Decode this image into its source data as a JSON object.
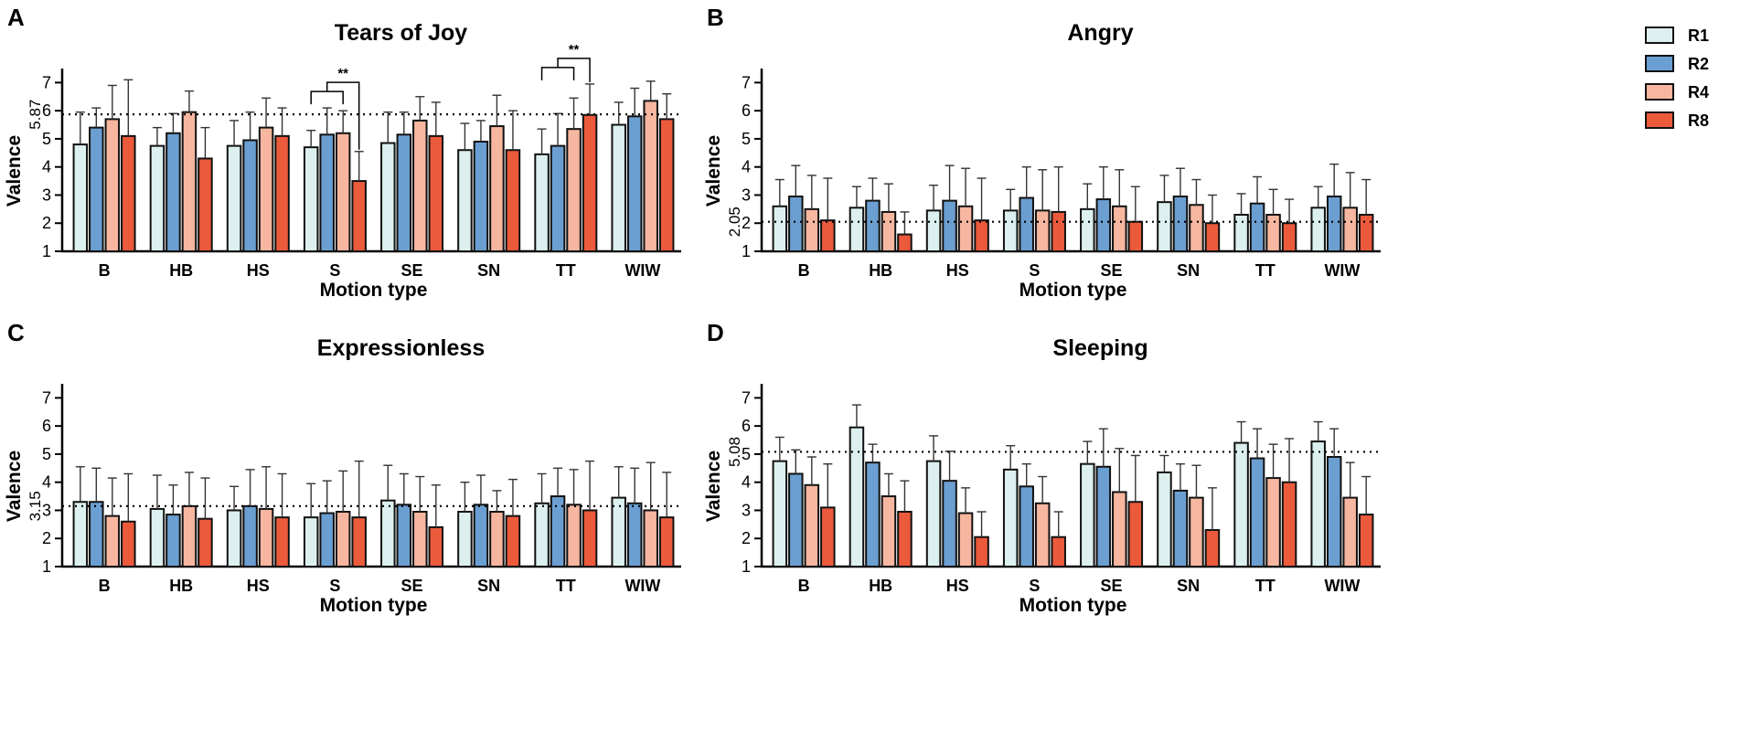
{
  "legend": {
    "items": [
      {
        "label": "R1",
        "color": "#dcf0ef"
      },
      {
        "label": "R2",
        "color": "#6b9fd1"
      },
      {
        "label": "R4",
        "color": "#f7b6a0"
      },
      {
        "label": "R8",
        "color": "#ec5a3c"
      }
    ]
  },
  "chart_data": [
    {
      "panel": "A",
      "type": "bar",
      "title": "Tears of Joy",
      "xlabel": "Motion type",
      "ylabel": "Valence",
      "ylim": [
        1,
        7.5
      ],
      "yticks": [
        "1",
        "2",
        "3",
        "4",
        "5",
        "6",
        "7"
      ],
      "categories": [
        "B",
        "HB",
        "HS",
        "S",
        "SE",
        "SN",
        "TT",
        "WIW"
      ],
      "reference_line": {
        "value": 5.87,
        "label": "5.87"
      },
      "series": [
        {
          "name": "R1",
          "values": [
            4.8,
            4.75,
            4.75,
            4.7,
            4.85,
            4.6,
            4.45,
            5.5
          ],
          "errors": [
            1.15,
            0.65,
            0.9,
            0.6,
            1.1,
            0.95,
            0.9,
            0.8
          ]
        },
        {
          "name": "R2",
          "values": [
            5.4,
            5.2,
            4.95,
            5.15,
            5.15,
            4.9,
            4.75,
            5.8
          ],
          "errors": [
            0.7,
            0.7,
            1.0,
            0.95,
            0.8,
            0.75,
            1.15,
            1.0
          ]
        },
        {
          "name": "R4",
          "values": [
            5.7,
            5.95,
            5.4,
            5.2,
            5.65,
            5.45,
            5.35,
            6.35
          ],
          "errors": [
            1.2,
            0.75,
            1.05,
            0.8,
            0.85,
            1.1,
            1.1,
            0.7
          ]
        },
        {
          "name": "R8",
          "values": [
            5.1,
            4.3,
            5.1,
            3.5,
            5.1,
            4.6,
            5.85,
            5.7
          ],
          "errors": [
            2.0,
            1.1,
            1.0,
            1.05,
            1.2,
            1.4,
            1.1,
            0.9
          ]
        }
      ],
      "annotations": [
        {
          "label": "**",
          "category": "S",
          "from_series": [
            "R1",
            "R2",
            "R4"
          ],
          "to_series": "R8"
        },
        {
          "label": "**",
          "category": "TT",
          "from_series": [
            "R1",
            "R2",
            "R4"
          ],
          "to_series": "R8"
        }
      ]
    },
    {
      "panel": "B",
      "type": "bar",
      "title": "Angry",
      "xlabel": "Motion type",
      "ylabel": "Valence",
      "ylim": [
        1,
        7.5
      ],
      "yticks": [
        "1",
        "2",
        "3",
        "4",
        "5",
        "6",
        "7"
      ],
      "categories": [
        "B",
        "HB",
        "HS",
        "S",
        "SE",
        "SN",
        "TT",
        "WIW"
      ],
      "reference_line": {
        "value": 2.05,
        "label": "2.05"
      },
      "series": [
        {
          "name": "R1",
          "values": [
            2.6,
            2.55,
            2.45,
            2.45,
            2.5,
            2.75,
            2.3,
            2.55
          ],
          "errors": [
            0.95,
            0.75,
            0.9,
            0.75,
            0.9,
            0.95,
            0.75,
            0.75
          ]
        },
        {
          "name": "R2",
          "values": [
            2.95,
            2.8,
            2.8,
            2.9,
            2.85,
            2.95,
            2.7,
            2.95
          ],
          "errors": [
            1.1,
            0.8,
            1.25,
            1.1,
            1.15,
            1.0,
            0.95,
            1.15
          ]
        },
        {
          "name": "R4",
          "values": [
            2.5,
            2.4,
            2.6,
            2.45,
            2.6,
            2.65,
            2.3,
            2.55
          ],
          "errors": [
            1.2,
            1.0,
            1.35,
            1.45,
            1.3,
            0.9,
            0.9,
            1.25
          ]
        },
        {
          "name": "R8",
          "values": [
            2.1,
            1.6,
            2.1,
            2.4,
            2.05,
            2.0,
            2.0,
            2.3
          ],
          "errors": [
            1.5,
            0.8,
            1.5,
            1.6,
            1.25,
            1.0,
            0.85,
            1.25
          ]
        }
      ]
    },
    {
      "panel": "C",
      "type": "bar",
      "title": "Expressionless",
      "xlabel": "Motion type",
      "ylabel": "Valence",
      "ylim": [
        1,
        7.5
      ],
      "yticks": [
        "1",
        "2",
        "3",
        "4",
        "5",
        "6",
        "7"
      ],
      "categories": [
        "B",
        "HB",
        "HS",
        "S",
        "SE",
        "SN",
        "TT",
        "WIW"
      ],
      "reference_line": {
        "value": 3.15,
        "label": "3.15"
      },
      "series": [
        {
          "name": "R1",
          "values": [
            3.3,
            3.05,
            3.0,
            2.75,
            3.35,
            2.95,
            3.25,
            3.45
          ],
          "errors": [
            1.25,
            1.2,
            0.85,
            1.2,
            1.25,
            1.05,
            1.05,
            1.1
          ]
        },
        {
          "name": "R2",
          "values": [
            3.3,
            2.85,
            3.15,
            2.9,
            3.2,
            3.2,
            3.5,
            3.25
          ],
          "errors": [
            1.2,
            1.05,
            1.3,
            1.15,
            1.1,
            1.05,
            1.0,
            1.25
          ]
        },
        {
          "name": "R4",
          "values": [
            2.8,
            3.15,
            3.05,
            2.95,
            2.95,
            2.95,
            3.2,
            3.0
          ],
          "errors": [
            1.35,
            1.2,
            1.5,
            1.45,
            1.25,
            0.75,
            1.25,
            1.7
          ]
        },
        {
          "name": "R8",
          "values": [
            2.6,
            2.7,
            2.75,
            2.75,
            2.4,
            2.8,
            3.0,
            2.75
          ],
          "errors": [
            1.7,
            1.45,
            1.55,
            2.0,
            1.5,
            1.3,
            1.75,
            1.6
          ]
        }
      ]
    },
    {
      "panel": "D",
      "type": "bar",
      "title": "Sleeping",
      "xlabel": "Motion type",
      "ylabel": "Valence",
      "ylim": [
        1,
        7.5
      ],
      "yticks": [
        "1",
        "2",
        "3",
        "4",
        "5",
        "6",
        "7"
      ],
      "categories": [
        "B",
        "HB",
        "HS",
        "S",
        "SE",
        "SN",
        "TT",
        "WIW"
      ],
      "reference_line": {
        "value": 5.08,
        "label": "5.08"
      },
      "series": [
        {
          "name": "R1",
          "values": [
            4.75,
            5.95,
            4.75,
            4.45,
            4.65,
            4.35,
            5.4,
            5.45
          ],
          "errors": [
            0.85,
            0.8,
            0.9,
            0.85,
            0.8,
            0.6,
            0.75,
            0.7
          ]
        },
        {
          "name": "R2",
          "values": [
            4.3,
            4.7,
            4.05,
            3.85,
            4.55,
            3.7,
            4.85,
            4.9
          ],
          "errors": [
            0.85,
            0.65,
            1.05,
            0.8,
            1.35,
            0.95,
            1.05,
            1.0
          ]
        },
        {
          "name": "R4",
          "values": [
            3.9,
            3.5,
            2.9,
            3.25,
            3.65,
            3.45,
            4.15,
            3.45
          ],
          "errors": [
            1.0,
            0.8,
            0.9,
            0.95,
            1.55,
            1.15,
            1.2,
            1.25
          ]
        },
        {
          "name": "R8",
          "values": [
            3.1,
            2.95,
            2.05,
            2.05,
            3.3,
            2.3,
            4.0,
            2.85
          ],
          "errors": [
            1.55,
            1.1,
            0.9,
            0.9,
            1.65,
            1.5,
            1.55,
            1.35
          ]
        }
      ]
    }
  ]
}
